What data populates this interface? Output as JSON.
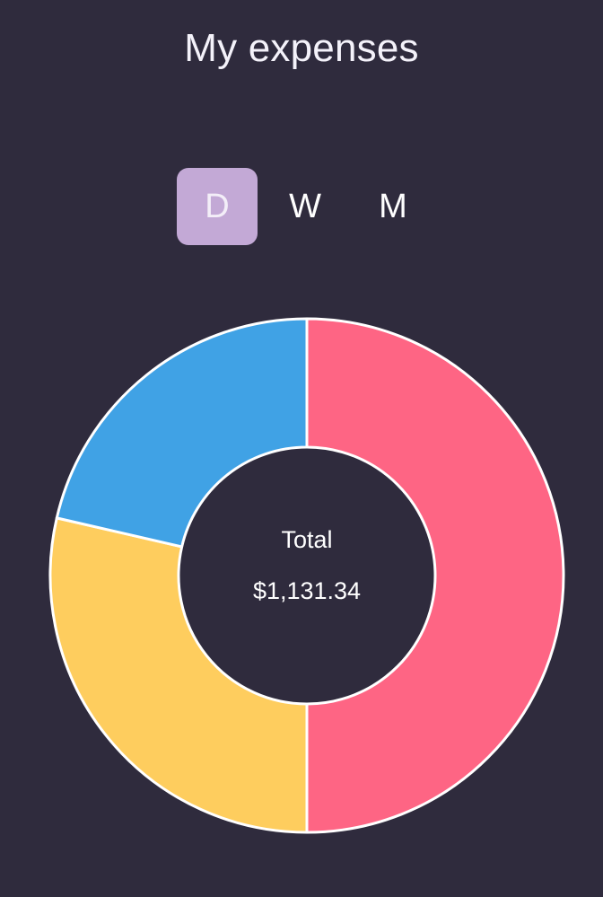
{
  "header": {
    "title": "My expenses"
  },
  "period_switch": {
    "options": [
      {
        "label": "D",
        "active": true
      },
      {
        "label": "W",
        "active": false
      },
      {
        "label": "M",
        "active": false
      }
    ]
  },
  "colors": {
    "background": "#2f2b3d",
    "active_period": "#c3a9d6",
    "slice_pink": "#fe6584",
    "slice_yellow": "#fecd5e",
    "slice_blue": "#40a2e5",
    "slice_border": "#ffffff"
  },
  "chart_data": {
    "type": "pie",
    "variant": "doughnut",
    "start_angle": "top",
    "direction": "clockwise",
    "center_text": {
      "label": "Total",
      "value": "$1,131.34"
    },
    "slices": [
      {
        "value": 50.0,
        "color": "#fe6584"
      },
      {
        "value": 28.6,
        "color": "#fecd5e"
      },
      {
        "value": 21.4,
        "color": "#40a2e5"
      }
    ]
  }
}
